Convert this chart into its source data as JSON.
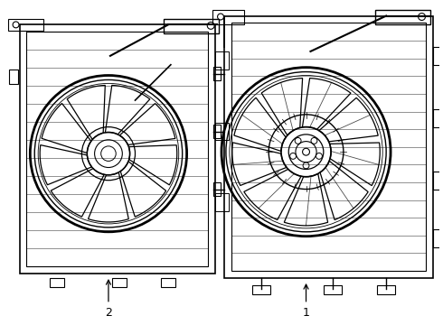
{
  "background_color": "#ffffff",
  "line_color": "#000000",
  "fig_width": 4.9,
  "fig_height": 3.6,
  "dpi": 100,
  "label1": "1",
  "label2": "2"
}
